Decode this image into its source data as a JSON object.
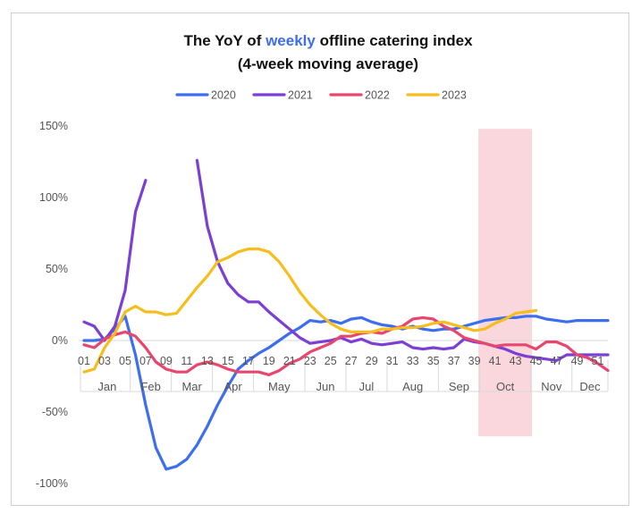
{
  "chart_data": {
    "type": "line",
    "title_parts": [
      "The YoY of ",
      "weekly",
      " offline catering index"
    ],
    "subtitle": "(4-week moving average)",
    "y_ticks": [
      "150%",
      "100%",
      "50%",
      "0%",
      "-50%",
      "-100%"
    ],
    "ylim": [
      -100,
      150
    ],
    "xlim": [
      1,
      52
    ],
    "x_tick_labels": [
      "01",
      "03",
      "05",
      "07",
      "09",
      "11",
      "13",
      "15",
      "17",
      "19",
      "21",
      "23",
      "25",
      "27",
      "29",
      "31",
      "33",
      "35",
      "37",
      "39",
      "41",
      "43",
      "45",
      "47",
      "49",
      "51"
    ],
    "months": [
      "Jan",
      "Feb",
      "Mar",
      "Apr",
      "May",
      "Jun",
      "Jul",
      "Aug",
      "Sep",
      "Oct",
      "Nov",
      "Dec"
    ],
    "highlight_weeks": [
      40,
      44
    ],
    "series": [
      {
        "name": "2020",
        "color": "#3d6ef0",
        "x": [
          1,
          2,
          3,
          4,
          5,
          6,
          7,
          8,
          9,
          10,
          11,
          12,
          13,
          14,
          15,
          16,
          17,
          18,
          19,
          20,
          21,
          22,
          23,
          24,
          25,
          26,
          27,
          28,
          29,
          30,
          31,
          32,
          33,
          34,
          35,
          36,
          37,
          38,
          39,
          40,
          41,
          42,
          43,
          44,
          45,
          46,
          47,
          48,
          49,
          50,
          51,
          52
        ],
        "y": [
          0,
          0,
          1,
          8,
          17,
          -10,
          -45,
          -75,
          -90,
          -88,
          -83,
          -73,
          -60,
          -45,
          -32,
          -20,
          -14,
          -9,
          -5,
          0,
          5,
          9,
          14,
          13,
          14,
          12,
          15,
          16,
          13,
          11,
          10,
          8,
          10,
          8,
          7,
          8,
          8,
          10,
          12,
          14,
          15,
          16,
          16,
          17,
          17,
          15,
          14,
          13,
          14,
          14,
          14,
          14
        ]
      },
      {
        "name": "2021",
        "color": "#7b3fd4",
        "x": [
          1,
          2,
          3,
          4,
          5,
          6,
          7,
          null,
          12,
          13,
          14,
          15,
          16,
          17,
          18,
          19,
          20,
          21,
          22,
          23,
          24,
          25,
          26,
          27,
          28,
          29,
          30,
          31,
          32,
          33,
          34,
          35,
          36,
          37,
          38,
          39,
          40,
          41,
          42,
          43,
          44,
          45,
          46,
          47,
          48,
          49,
          50,
          51,
          52
        ],
        "y": [
          13,
          10,
          0,
          10,
          35,
          90,
          112,
          null,
          126,
          80,
          55,
          40,
          32,
          27,
          27,
          20,
          14,
          8,
          2,
          -2,
          -1,
          0,
          2,
          -1,
          1,
          -2,
          -3,
          -2,
          -1,
          -5,
          -6,
          -5,
          -6,
          -5,
          1,
          -1,
          -2,
          -4,
          -6,
          -9,
          -11,
          -12,
          -13,
          -14,
          -10,
          -10,
          -10,
          -10,
          -10
        ]
      },
      {
        "name": "2022",
        "color": "#e8466e",
        "x": [
          1,
          2,
          3,
          4,
          5,
          6,
          7,
          8,
          9,
          10,
          11,
          12,
          13,
          14,
          15,
          16,
          17,
          18,
          19,
          20,
          21,
          22,
          23,
          24,
          25,
          26,
          27,
          28,
          29,
          30,
          31,
          32,
          33,
          34,
          35,
          36,
          37,
          38,
          39,
          40,
          41,
          42,
          43,
          44,
          45,
          46,
          47,
          48,
          49,
          50,
          51,
          52
        ],
        "y": [
          -3,
          -5,
          1,
          4,
          6,
          3,
          -5,
          -15,
          -20,
          -22,
          -22,
          -17,
          -15,
          -17,
          -20,
          -22,
          -22,
          -22,
          -24,
          -21,
          -16,
          -13,
          -8,
          -5,
          -2,
          3,
          3,
          5,
          6,
          5,
          8,
          10,
          15,
          16,
          15,
          10,
          7,
          2,
          0,
          -2,
          -4,
          -3,
          -3,
          -3,
          -6,
          -1,
          -1,
          -4,
          -10,
          -12,
          -16,
          -21
        ]
      },
      {
        "name": "2023",
        "color": "#f5be1e",
        "x": [
          1,
          2,
          3,
          4,
          5,
          6,
          7,
          8,
          9,
          10,
          11,
          12,
          13,
          14,
          15,
          16,
          17,
          18,
          19,
          20,
          21,
          22,
          23,
          24,
          25,
          26,
          27,
          28,
          29,
          30,
          31,
          32,
          33,
          34,
          35,
          36,
          37,
          38,
          39,
          40,
          41,
          42,
          43,
          44,
          45
        ],
        "y": [
          -22,
          -20,
          -5,
          5,
          20,
          24,
          20,
          20,
          18,
          19,
          28,
          37,
          45,
          55,
          58,
          62,
          64,
          64,
          62,
          55,
          45,
          34,
          25,
          18,
          12,
          8,
          6,
          6,
          6,
          8,
          8,
          9,
          9,
          10,
          12,
          13,
          11,
          9,
          7,
          8,
          12,
          15,
          19,
          20,
          21
        ]
      }
    ]
  }
}
